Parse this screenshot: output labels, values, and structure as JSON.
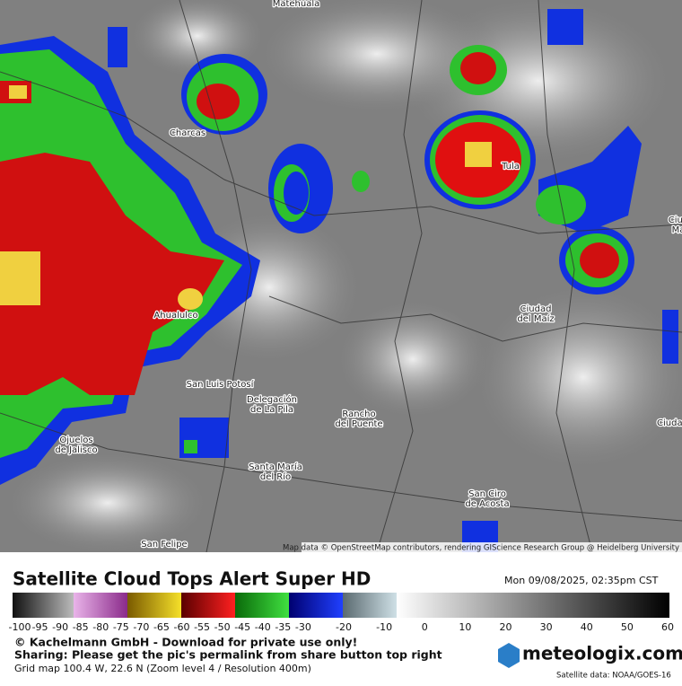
{
  "map": {
    "places": [
      {
        "lines": [
          "Matehuala"
        ]
      },
      {
        "lines": [
          "Charcas"
        ]
      },
      {
        "lines": [
          "Tula"
        ]
      },
      {
        "lines": [
          "Ciud",
          "Ma"
        ]
      },
      {
        "lines": [
          "Ciudad",
          "del Maíz"
        ]
      },
      {
        "lines": [
          "Ahualulco"
        ]
      },
      {
        "lines": [
          "San Luis Potosí"
        ]
      },
      {
        "lines": [
          "Delegación",
          "de La Pila"
        ]
      },
      {
        "lines": [
          "Rancho",
          "del Puente"
        ]
      },
      {
        "lines": [
          "Ciudad V"
        ]
      },
      {
        "lines": [
          "Ojuelos",
          "de Jalisco"
        ]
      },
      {
        "lines": [
          "Santa María",
          "del Río"
        ]
      },
      {
        "lines": [
          "San Ciro",
          "de Acosta"
        ]
      },
      {
        "lines": [
          "San Felipe"
        ]
      }
    ],
    "attribution": "Map data © OpenStreetMap contributors, rendering GIScience Research Group @ Heidelberg University"
  },
  "footer": {
    "title": "Satellite Cloud Tops Alert Super HD",
    "datetime": "Mon 09/08/2025, 02:35pm CST",
    "scale_labels": [
      -100,
      -95,
      -90,
      -85,
      -80,
      -75,
      -70,
      -65,
      -60,
      -55,
      -50,
      -45,
      -40,
      -35,
      -30,
      -20,
      -10,
      0,
      10,
      20,
      30,
      40,
      50,
      60
    ],
    "lines": [
      "© Kachelmann GmbH - Download for private use only!",
      "Sharing: Please get the pic's permalink from share button top right",
      "Grid map 100.4 W, 22.6 N (Zoom level 4 / Resolution 400m)"
    ],
    "logo": "meteologix.com",
    "source": "Satellite data: NOAA/GOES-16"
  }
}
